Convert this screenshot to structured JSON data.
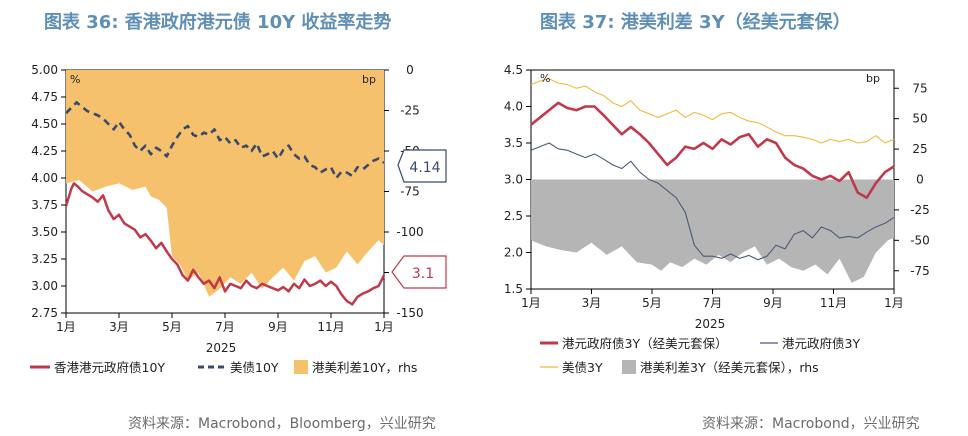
{
  "left_title": "图表 36: 香港政府港元债 10Y 收益率走势",
  "right_title": "图表 37: 港美利差 3Y（经美元套保）",
  "left_source": "资料来源：Macrobond，Bloomberg，兴业研究",
  "right_source": "资料来源：Macrobond，兴业研究",
  "colors": {
    "title": "#5f8fb4",
    "red": "#c0394b",
    "navy": "#3a4a6b",
    "orange": "#f5c16c",
    "gold": "#f0b93a",
    "gray": "#b5b5b5",
    "navy_thin": "#4a5a7a"
  },
  "chart_data": [
    {
      "type": "line",
      "title": "图表 36: 香港政府港元债 10Y 收益率走势",
      "x_labels": [
        "1月",
        "3月",
        "5月",
        "7月",
        "9月",
        "11月",
        "1月"
      ],
      "x_year": "2025",
      "left_unit": "%",
      "right_unit": "bp",
      "ylim": [
        2.75,
        5.0
      ],
      "y_ticks": [
        "5.00",
        "4.75",
        "4.50",
        "4.25",
        "4.00",
        "3.75",
        "3.50",
        "3.25",
        "3.00",
        "2.75"
      ],
      "y2lim": [
        -150,
        0
      ],
      "y2_ticks": [
        "0",
        "-25",
        "-50",
        "-75",
        "-100",
        "-125",
        "-150"
      ],
      "x_range": [
        0,
        12
      ],
      "legend": [
        "香港港元政府债10Y",
        "美债10Y",
        "港美利差10Y，rhs"
      ],
      "callouts": [
        "4.14",
        "3.1"
      ],
      "series": [
        {
          "name": "香港港元政府债10Y",
          "axis": "left",
          "style": "red",
          "x": [
            0,
            0.1,
            0.2,
            0.3,
            0.45,
            0.6,
            0.8,
            1.0,
            1.2,
            1.4,
            1.6,
            1.8,
            2.0,
            2.2,
            2.4,
            2.6,
            2.8,
            3.0,
            3.2,
            3.4,
            3.6,
            3.8,
            4.0,
            4.2,
            4.4,
            4.6,
            4.8,
            5.0,
            5.2,
            5.4,
            5.6,
            5.8,
            6.0,
            6.2,
            6.4,
            6.6,
            6.8,
            7.0,
            7.2,
            7.4,
            7.6,
            7.8,
            8.0,
            8.2,
            8.4,
            8.6,
            8.8,
            9.0,
            9.2,
            9.4,
            9.6,
            9.8,
            10.0,
            10.2,
            10.4,
            10.6,
            10.8,
            11.0,
            11.2,
            11.4,
            11.6,
            11.8,
            12.0
          ],
          "y": [
            3.74,
            3.82,
            3.9,
            3.95,
            3.92,
            3.88,
            3.85,
            3.82,
            3.78,
            3.84,
            3.7,
            3.62,
            3.66,
            3.58,
            3.55,
            3.52,
            3.45,
            3.48,
            3.42,
            3.35,
            3.4,
            3.32,
            3.25,
            3.2,
            3.1,
            3.05,
            3.15,
            3.08,
            3.02,
            3.05,
            2.98,
            3.08,
            2.95,
            3.02,
            3.0,
            2.98,
            3.05,
            3.0,
            2.98,
            3.02,
            3.0,
            2.98,
            2.96,
            2.99,
            2.95,
            3.02,
            2.98,
            3.06,
            3.0,
            3.02,
            3.05,
            3.0,
            3.04,
            3.0,
            2.92,
            2.86,
            2.83,
            2.9,
            2.93,
            2.95,
            2.98,
            3.0,
            3.1
          ]
        },
        {
          "name": "美债10Y",
          "axis": "left",
          "style": "navy_dash",
          "x": [
            0,
            0.2,
            0.4,
            0.6,
            0.8,
            1.0,
            1.2,
            1.4,
            1.6,
            1.8,
            2.0,
            2.2,
            2.4,
            2.6,
            2.8,
            3.0,
            3.2,
            3.4,
            3.6,
            3.8,
            4.0,
            4.2,
            4.4,
            4.6,
            4.8,
            5.0,
            5.2,
            5.4,
            5.6,
            5.8,
            6.0,
            6.2,
            6.4,
            6.6,
            6.8,
            7.0,
            7.2,
            7.4,
            7.6,
            7.8,
            8.0,
            8.2,
            8.4,
            8.6,
            8.8,
            9.0,
            9.2,
            9.4,
            9.6,
            9.8,
            10.0,
            10.2,
            10.4,
            10.6,
            10.8,
            11.0,
            11.2,
            11.4,
            11.6,
            11.8,
            12.0
          ],
          "y": [
            4.6,
            4.65,
            4.7,
            4.66,
            4.62,
            4.6,
            4.58,
            4.55,
            4.5,
            4.45,
            4.52,
            4.45,
            4.4,
            4.3,
            4.25,
            4.3,
            4.22,
            4.28,
            4.25,
            4.2,
            4.3,
            4.38,
            4.45,
            4.48,
            4.4,
            4.38,
            4.42,
            4.4,
            4.45,
            4.35,
            4.38,
            4.32,
            4.35,
            4.28,
            4.3,
            4.25,
            4.32,
            4.2,
            4.22,
            4.25,
            4.18,
            4.26,
            4.3,
            4.22,
            4.18,
            4.2,
            4.12,
            4.1,
            4.05,
            4.08,
            4.1,
            4.0,
            4.06,
            4.05,
            4.02,
            4.1,
            4.08,
            4.12,
            4.16,
            4.18,
            4.14
          ]
        },
        {
          "name": "港美利差10Y，rhs",
          "axis": "right",
          "style": "orange_area",
          "x": [
            0,
            0.5,
            1.0,
            1.5,
            2.0,
            2.5,
            3.0,
            3.2,
            3.5,
            3.8,
            4.0,
            4.3,
            4.6,
            5.0,
            5.4,
            5.8,
            6.2,
            6.6,
            7.0,
            7.4,
            7.8,
            8.2,
            8.6,
            9.0,
            9.4,
            9.8,
            10.2,
            10.6,
            11.0,
            11.4,
            11.8,
            12.0
          ],
          "y": [
            -70,
            -68,
            -75,
            -72,
            -70,
            -74,
            -72,
            -78,
            -80,
            -85,
            -115,
            -120,
            -130,
            -125,
            -140,
            -135,
            -128,
            -132,
            -125,
            -135,
            -128,
            -122,
            -130,
            -118,
            -115,
            -125,
            -122,
            -112,
            -120,
            -112,
            -105,
            -108
          ]
        }
      ]
    },
    {
      "type": "line",
      "title": "图表 37: 港美利差 3Y（经美元套保）",
      "x_labels": [
        "1月",
        "3月",
        "5月",
        "7月",
        "9月",
        "11月",
        "1月"
      ],
      "x_year": "2025",
      "left_unit": "%",
      "right_unit": "bp",
      "ylim": [
        1.5,
        4.5
      ],
      "y_ticks": [
        "4.5",
        "4.0",
        "3.5",
        "3.0",
        "2.5",
        "2.0",
        "1.5"
      ],
      "y2lim": [
        -90,
        90
      ],
      "y2_ticks": [
        "75",
        "50",
        "25",
        "0",
        "-25",
        "-50",
        "-75"
      ],
      "x_range": [
        0,
        12
      ],
      "legend": [
        "港元政府债3Y（经美元套保）",
        "港元政府债3Y",
        "美债3Y",
        "港美利差3Y（经美元套保），rhs"
      ],
      "series": [
        {
          "name": "港元政府债3Y（经美元套保）",
          "axis": "left",
          "style": "red_thick",
          "x": [
            0,
            0.3,
            0.6,
            0.9,
            1.2,
            1.5,
            1.8,
            2.1,
            2.4,
            2.7,
            3.0,
            3.3,
            3.6,
            3.9,
            4.2,
            4.5,
            4.8,
            5.1,
            5.4,
            5.7,
            6.0,
            6.3,
            6.6,
            6.9,
            7.2,
            7.5,
            7.8,
            8.1,
            8.4,
            8.7,
            9.0,
            9.3,
            9.6,
            9.9,
            10.2,
            10.5,
            10.8,
            11.1,
            11.4,
            11.7,
            12.0
          ],
          "y": [
            3.75,
            3.85,
            3.95,
            4.05,
            3.98,
            3.95,
            4.0,
            4.0,
            3.88,
            3.75,
            3.62,
            3.72,
            3.62,
            3.5,
            3.35,
            3.2,
            3.3,
            3.45,
            3.42,
            3.5,
            3.42,
            3.55,
            3.48,
            3.58,
            3.62,
            3.45,
            3.55,
            3.5,
            3.3,
            3.2,
            3.15,
            3.05,
            3.0,
            3.05,
            2.98,
            3.1,
            2.82,
            2.75,
            2.95,
            3.1,
            3.18
          ]
        },
        {
          "name": "港元政府债3Y",
          "axis": "left",
          "style": "navy_thin",
          "x": [
            0,
            0.3,
            0.6,
            0.9,
            1.2,
            1.5,
            1.8,
            2.1,
            2.4,
            2.7,
            3.0,
            3.3,
            3.6,
            3.9,
            4.2,
            4.5,
            4.8,
            5.1,
            5.4,
            5.7,
            6.0,
            6.3,
            6.6,
            6.9,
            7.2,
            7.5,
            7.8,
            8.1,
            8.4,
            8.7,
            9.0,
            9.3,
            9.6,
            9.9,
            10.2,
            10.5,
            10.8,
            11.1,
            11.4,
            11.7,
            12.0
          ],
          "y": [
            3.4,
            3.45,
            3.5,
            3.42,
            3.4,
            3.35,
            3.3,
            3.35,
            3.28,
            3.2,
            3.15,
            3.25,
            3.1,
            3.0,
            2.95,
            2.85,
            2.75,
            2.55,
            2.1,
            1.95,
            1.95,
            1.92,
            1.98,
            1.92,
            1.96,
            1.9,
            1.95,
            2.1,
            2.05,
            2.25,
            2.3,
            2.2,
            2.35,
            2.3,
            2.2,
            2.22,
            2.2,
            2.28,
            2.35,
            2.4,
            2.48
          ]
        },
        {
          "name": "美债3Y",
          "axis": "left",
          "style": "gold_thin",
          "x": [
            0,
            0.3,
            0.6,
            0.9,
            1.2,
            1.5,
            1.8,
            2.1,
            2.4,
            2.7,
            3.0,
            3.3,
            3.6,
            3.9,
            4.2,
            4.5,
            4.8,
            5.1,
            5.4,
            5.7,
            6.0,
            6.3,
            6.6,
            6.9,
            7.2,
            7.5,
            7.8,
            8.1,
            8.4,
            8.7,
            9.0,
            9.3,
            9.6,
            9.9,
            10.2,
            10.5,
            10.8,
            11.1,
            11.4,
            11.7,
            12.0
          ],
          "y": [
            4.3,
            4.35,
            4.38,
            4.32,
            4.3,
            4.25,
            4.28,
            4.2,
            4.15,
            4.05,
            4.0,
            4.08,
            3.95,
            3.9,
            3.85,
            3.9,
            3.95,
            3.85,
            3.92,
            3.88,
            3.82,
            3.9,
            3.92,
            3.85,
            3.8,
            3.78,
            3.72,
            3.65,
            3.6,
            3.6,
            3.58,
            3.55,
            3.5,
            3.55,
            3.52,
            3.55,
            3.5,
            3.52,
            3.6,
            3.5,
            3.55
          ]
        },
        {
          "name": "港美利差3Y（经美元套保），rhs",
          "axis": "right",
          "style": "gray_area",
          "x": [
            0,
            0.5,
            1.0,
            1.5,
            2.0,
            2.5,
            3.0,
            3.5,
            4.0,
            4.3,
            4.6,
            5.0,
            5.4,
            5.8,
            6.2,
            6.6,
            7.0,
            7.4,
            7.8,
            8.2,
            8.6,
            9.0,
            9.4,
            9.8,
            10.2,
            10.6,
            11.0,
            11.4,
            11.8,
            12.0
          ],
          "y": [
            -50,
            -55,
            -58,
            -60,
            -52,
            -62,
            -55,
            -68,
            -70,
            -75,
            -68,
            -72,
            -65,
            -70,
            -62,
            -68,
            -60,
            -55,
            -70,
            -65,
            -72,
            -75,
            -70,
            -78,
            -65,
            -85,
            -80,
            -60,
            -50,
            -48
          ]
        }
      ]
    }
  ]
}
